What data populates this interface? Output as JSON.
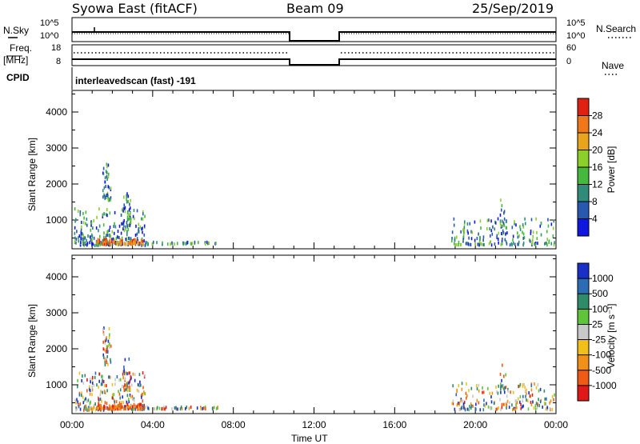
{
  "header": {
    "station": "Syowa East (fitACF)",
    "beam": "Beam 09",
    "date": "25/Sep/2019"
  },
  "panels": {
    "nsky_label": "N.Sky",
    "nsky_top": "10^5",
    "nsky_bottom": "10^0",
    "nsearch_label": "N.Search",
    "nsearch_top": "10^5",
    "nsearch_bottom": "10^0",
    "freq_label": "Freq.",
    "freq_unit": "[MHz]",
    "freq_top": "18",
    "freq_bottom": "8",
    "nave_label": "Nave",
    "nave_top": "60",
    "nave_bottom": "0",
    "cpid_label": "CPID",
    "cpid_value": "interleavedscan (fast) -191"
  },
  "chart_data": [
    {
      "type": "heatmap",
      "ylabel": "Slant Range [km]",
      "xlabel": "",
      "yticks": [
        1000,
        2000,
        3000,
        4000
      ],
      "ylim": [
        200,
        4600
      ],
      "xlim": [
        0,
        24
      ],
      "colorbar_label": "Power [dB]",
      "colorbar_ticks": [
        "4",
        "8",
        "12",
        "16",
        "20",
        "24",
        "28"
      ],
      "colors": [
        "#1018e0",
        "#2858b0",
        "#2f8c78",
        "#46b83e",
        "#8ccf2a",
        "#e8a41a",
        "#f07818",
        "#e02010"
      ]
    },
    {
      "type": "heatmap",
      "ylabel": "Slant Range [km]",
      "xlabel": "Time UT",
      "xticks": [
        "00:00",
        "04:00",
        "08:00",
        "12:00",
        "16:00",
        "20:00",
        "00:00"
      ],
      "yticks": [
        1000,
        2000,
        3000,
        4000
      ],
      "ylim": [
        200,
        4600
      ],
      "xlim": [
        0,
        24
      ],
      "colorbar_label": "Velocity [m s⁻¹]",
      "colorbar_ticks": [
        "1000",
        "500",
        "100",
        "25",
        "-25",
        "-100",
        "-500",
        "-1000"
      ],
      "colors": [
        "#1830c8",
        "#2c6cb4",
        "#2f8c6a",
        "#5ec43a",
        "#c8c8c8",
        "#f0c018",
        "#f09018",
        "#f05a14",
        "#e01818"
      ]
    }
  ],
  "data_gap_hours": [
    10.75,
    13.25
  ]
}
